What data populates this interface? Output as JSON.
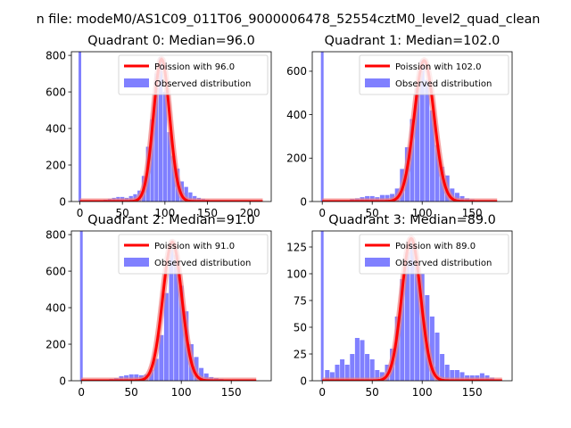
{
  "figure_title": "n file: modeM0/AS1C09_011T06_9000006478_52554cztM0_level2_quad_clean",
  "colors": {
    "histogram": "#8080ff",
    "poisson_line": "#ff0000",
    "poisson_halo": "#f08080",
    "axes": "#000000",
    "background": "#ffffff"
  },
  "chart_data": [
    {
      "type": "bar",
      "title": "Quadrant 0: Median=96.0",
      "median": 96.0,
      "xlim": [
        -10,
        225
      ],
      "ylim": [
        0,
        820
      ],
      "xticks": [
        0,
        50,
        100,
        150,
        200
      ],
      "yticks": [
        0,
        200,
        400,
        600,
        800
      ],
      "bin_width": 4.5,
      "zero_bar": {
        "x": 0,
        "value": 820
      },
      "bins": [
        [
          20,
          2
        ],
        [
          25,
          5
        ],
        [
          30,
          10
        ],
        [
          35,
          15
        ],
        [
          40,
          20
        ],
        [
          45,
          25
        ],
        [
          50,
          25
        ],
        [
          55,
          20
        ],
        [
          60,
          30
        ],
        [
          65,
          40
        ],
        [
          70,
          60
        ],
        [
          75,
          140
        ],
        [
          80,
          300
        ],
        [
          85,
          450
        ],
        [
          90,
          700
        ],
        [
          95,
          790
        ],
        [
          100,
          600
        ],
        [
          105,
          380
        ],
        [
          110,
          250
        ],
        [
          115,
          180
        ],
        [
          120,
          110
        ],
        [
          125,
          80
        ],
        [
          130,
          50
        ],
        [
          135,
          30
        ],
        [
          140,
          20
        ],
        [
          145,
          15
        ],
        [
          150,
          10
        ],
        [
          155,
          5
        ],
        [
          160,
          4
        ],
        [
          165,
          3
        ]
      ],
      "poisson_curve": {
        "mean": 96.0,
        "peak": 780,
        "sigma": 9.5,
        "x_range": [
          0,
          215
        ]
      },
      "legend": [
        "Poission with 96.0",
        "Observed distribution"
      ]
    },
    {
      "type": "bar",
      "title": "Quadrant 1: Median=102.0",
      "median": 102.0,
      "xlim": [
        -10,
        190
      ],
      "ylim": [
        0,
        690
      ],
      "xticks": [
        0,
        50,
        100,
        150
      ],
      "yticks": [
        0,
        200,
        400,
        600
      ],
      "bin_width": 4.5,
      "zero_bar": {
        "x": 0,
        "value": 690
      },
      "bins": [
        [
          20,
          2
        ],
        [
          25,
          5
        ],
        [
          30,
          12
        ],
        [
          35,
          15
        ],
        [
          40,
          20
        ],
        [
          45,
          25
        ],
        [
          50,
          25
        ],
        [
          55,
          20
        ],
        [
          60,
          30
        ],
        [
          65,
          30
        ],
        [
          70,
          35
        ],
        [
          75,
          60
        ],
        [
          80,
          150
        ],
        [
          85,
          250
        ],
        [
          90,
          380
        ],
        [
          95,
          520
        ],
        [
          100,
          650
        ],
        [
          105,
          560
        ],
        [
          110,
          420
        ],
        [
          115,
          260
        ],
        [
          120,
          160
        ],
        [
          125,
          120
        ],
        [
          130,
          60
        ],
        [
          135,
          40
        ],
        [
          140,
          25
        ],
        [
          145,
          15
        ],
        [
          150,
          10
        ],
        [
          155,
          5
        ],
        [
          160,
          4
        ],
        [
          165,
          3
        ]
      ],
      "poisson_curve": {
        "mean": 102.0,
        "peak": 650,
        "sigma": 10.0,
        "x_range": [
          0,
          175
        ]
      },
      "legend": [
        "Poission with 102.0",
        "Observed distribution"
      ]
    },
    {
      "type": "bar",
      "title": "Quadrant 2: Median=91.0",
      "median": 91.0,
      "xlim": [
        -10,
        190
      ],
      "ylim": [
        0,
        820
      ],
      "xticks": [
        0,
        50,
        100,
        150
      ],
      "yticks": [
        0,
        200,
        400,
        600,
        800
      ],
      "bin_width": 4.5,
      "zero_bar": {
        "x": 0,
        "value": 820
      },
      "bins": [
        [
          30,
          10
        ],
        [
          35,
          15
        ],
        [
          40,
          25
        ],
        [
          45,
          30
        ],
        [
          50,
          35
        ],
        [
          55,
          35
        ],
        [
          60,
          30
        ],
        [
          65,
          35
        ],
        [
          70,
          60
        ],
        [
          75,
          120
        ],
        [
          80,
          250
        ],
        [
          85,
          480
        ],
        [
          90,
          720
        ],
        [
          95,
          690
        ],
        [
          100,
          520
        ],
        [
          105,
          380
        ],
        [
          110,
          200
        ],
        [
          115,
          130
        ],
        [
          120,
          70
        ],
        [
          125,
          40
        ],
        [
          130,
          20
        ],
        [
          135,
          15
        ],
        [
          140,
          10
        ],
        [
          145,
          5
        ]
      ],
      "poisson_curve": {
        "mean": 91.0,
        "peak": 760,
        "sigma": 9.5,
        "x_range": [
          0,
          175
        ]
      },
      "legend": [
        "Poission with 91.0",
        "Observed distribution"
      ]
    },
    {
      "type": "bar",
      "title": "Quadrant 3: Median=89.0",
      "median": 89.0,
      "xlim": [
        -10,
        190
      ],
      "ylim": [
        0,
        140
      ],
      "xticks": [
        0,
        50,
        100,
        150
      ],
      "yticks": [
        0,
        25,
        50,
        75,
        100,
        125
      ],
      "bin_width": 4.5,
      "zero_bar": {
        "x": 0,
        "value": 140
      },
      "bins": [
        [
          5,
          10
        ],
        [
          10,
          8
        ],
        [
          15,
          15
        ],
        [
          20,
          20
        ],
        [
          25,
          15
        ],
        [
          30,
          25
        ],
        [
          35,
          40
        ],
        [
          40,
          38
        ],
        [
          45,
          25
        ],
        [
          50,
          20
        ],
        [
          55,
          10
        ],
        [
          60,
          8
        ],
        [
          65,
          15
        ],
        [
          70,
          30
        ],
        [
          75,
          60
        ],
        [
          80,
          95
        ],
        [
          85,
          120
        ],
        [
          90,
          130
        ],
        [
          95,
          110
        ],
        [
          100,
          100
        ],
        [
          105,
          80
        ],
        [
          110,
          60
        ],
        [
          115,
          45
        ],
        [
          120,
          25
        ],
        [
          125,
          15
        ],
        [
          130,
          10
        ],
        [
          135,
          10
        ],
        [
          140,
          8
        ],
        [
          145,
          5
        ],
        [
          150,
          5
        ],
        [
          155,
          5
        ],
        [
          160,
          7
        ],
        [
          165,
          5
        ],
        [
          170,
          3
        ]
      ],
      "poisson_curve": {
        "mean": 89.0,
        "peak": 133,
        "sigma": 9.4,
        "x_range": [
          0,
          180
        ]
      },
      "legend": [
        "Poission with 89.0",
        "Observed distribution"
      ]
    }
  ]
}
